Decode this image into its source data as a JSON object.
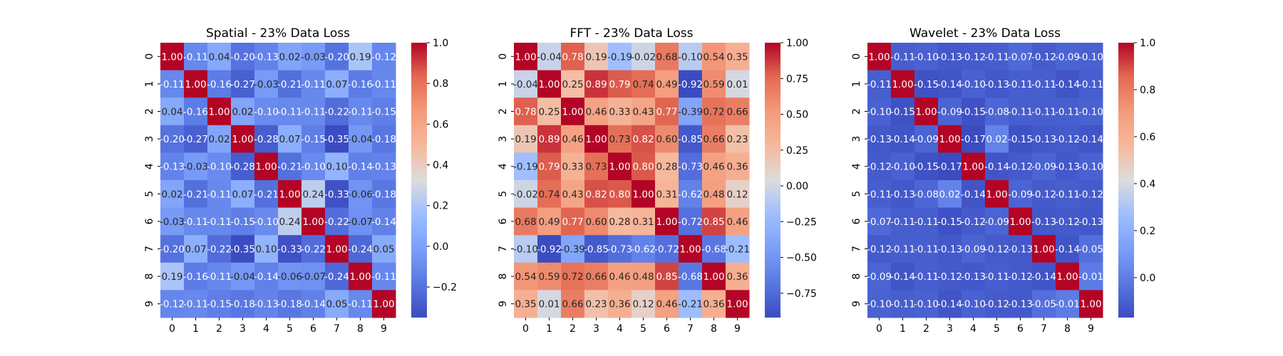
{
  "chart_data": [
    {
      "type": "heatmap",
      "title": "Spatial - 23% Data Loss",
      "x_categories": [
        "0",
        "1",
        "2",
        "3",
        "4",
        "5",
        "6",
        "7",
        "8",
        "9"
      ],
      "y_categories": [
        "0",
        "1",
        "2",
        "3",
        "4",
        "5",
        "6",
        "7",
        "8",
        "9"
      ],
      "values": [
        [
          1.0,
          -0.11,
          0.04,
          -0.2,
          -0.13,
          0.02,
          -0.03,
          -0.2,
          0.19,
          -0.12
        ],
        [
          -0.11,
          1.0,
          -0.16,
          -0.27,
          -0.03,
          -0.21,
          -0.11,
          0.07,
          -0.16,
          -0.11
        ],
        [
          0.04,
          -0.16,
          1.0,
          0.02,
          -0.1,
          -0.11,
          -0.11,
          -0.22,
          -0.11,
          -0.15
        ],
        [
          -0.2,
          -0.27,
          0.02,
          1.0,
          -0.28,
          0.07,
          -0.15,
          -0.35,
          -0.04,
          -0.18
        ],
        [
          -0.13,
          -0.03,
          -0.1,
          -0.28,
          1.0,
          -0.21,
          -0.1,
          0.1,
          -0.14,
          -0.13
        ],
        [
          0.02,
          -0.21,
          -0.11,
          0.07,
          -0.21,
          1.0,
          0.24,
          -0.33,
          -0.06,
          -0.18
        ],
        [
          -0.03,
          -0.11,
          -0.11,
          -0.15,
          -0.1,
          0.24,
          1.0,
          -0.22,
          -0.07,
          -0.14
        ],
        [
          -0.2,
          0.07,
          -0.22,
          -0.35,
          0.1,
          -0.33,
          -0.22,
          1.0,
          -0.24,
          0.05
        ],
        [
          0.19,
          -0.16,
          -0.11,
          -0.04,
          -0.14,
          -0.06,
          -0.07,
          -0.24,
          1.0,
          -0.11
        ],
        [
          -0.12,
          -0.11,
          -0.15,
          -0.18,
          -0.13,
          -0.18,
          -0.14,
          0.05,
          -0.11,
          1.0
        ]
      ],
      "colormap": "coolwarm",
      "vmin": -0.35,
      "vmax": 1.0,
      "colorbar_ticks": [
        1.0,
        0.8,
        0.6,
        0.4,
        0.2,
        0.0,
        -0.2
      ],
      "colorbar_labels": [
        "1.0",
        "0.8",
        "0.6",
        "0.4",
        "0.2",
        "0.0",
        "−0.2"
      ]
    },
    {
      "type": "heatmap",
      "title": "FFT - 23% Data Loss",
      "x_categories": [
        "0",
        "1",
        "2",
        "3",
        "4",
        "5",
        "6",
        "7",
        "8",
        "9"
      ],
      "y_categories": [
        "0",
        "1",
        "2",
        "3",
        "4",
        "5",
        "6",
        "7",
        "8",
        "9"
      ],
      "values": [
        [
          1.0,
          -0.04,
          0.78,
          0.19,
          -0.19,
          -0.02,
          0.68,
          -0.1,
          0.54,
          0.35
        ],
        [
          -0.04,
          1.0,
          0.25,
          0.89,
          0.79,
          0.74,
          0.49,
          -0.92,
          0.59,
          0.01
        ],
        [
          0.78,
          0.25,
          1.0,
          0.46,
          0.33,
          0.43,
          0.77,
          -0.39,
          0.72,
          0.66
        ],
        [
          0.19,
          0.89,
          0.46,
          1.0,
          0.73,
          0.82,
          0.6,
          -0.85,
          0.66,
          0.23
        ],
        [
          -0.19,
          0.79,
          0.33,
          0.73,
          1.0,
          0.8,
          0.28,
          -0.73,
          0.46,
          0.36
        ],
        [
          -0.02,
          0.74,
          0.43,
          0.82,
          0.8,
          1.0,
          0.31,
          -0.62,
          0.48,
          0.12
        ],
        [
          0.68,
          0.49,
          0.77,
          0.6,
          0.28,
          0.31,
          1.0,
          -0.72,
          0.85,
          0.46
        ],
        [
          -0.1,
          -0.92,
          -0.39,
          -0.85,
          -0.73,
          -0.62,
          -0.72,
          1.0,
          -0.68,
          -0.21
        ],
        [
          0.54,
          0.59,
          0.72,
          0.66,
          0.46,
          0.48,
          0.85,
          -0.68,
          1.0,
          0.36
        ],
        [
          0.35,
          0.01,
          0.66,
          0.23,
          0.36,
          0.12,
          0.46,
          -0.21,
          0.36,
          1.0
        ]
      ],
      "colormap": "coolwarm",
      "vmin": -0.92,
      "vmax": 1.0,
      "colorbar_ticks": [
        1.0,
        0.75,
        0.5,
        0.25,
        0.0,
        -0.25,
        -0.5,
        -0.75
      ],
      "colorbar_labels": [
        "1.00",
        "0.75",
        "0.50",
        "0.25",
        "0.00",
        "−0.25",
        "−0.50",
        "−0.75"
      ]
    },
    {
      "type": "heatmap",
      "title": "Wavelet - 23% Data Loss",
      "x_categories": [
        "0",
        "1",
        "2",
        "3",
        "4",
        "5",
        "6",
        "7",
        "8",
        "9"
      ],
      "y_categories": [
        "0",
        "1",
        "2",
        "3",
        "4",
        "5",
        "6",
        "7",
        "8",
        "9"
      ],
      "values": [
        [
          1.0,
          -0.11,
          -0.1,
          -0.13,
          -0.12,
          -0.11,
          -0.07,
          -0.12,
          -0.09,
          -0.1
        ],
        [
          -0.11,
          1.0,
          -0.15,
          -0.14,
          -0.1,
          -0.13,
          -0.11,
          -0.11,
          -0.14,
          -0.11
        ],
        [
          -0.1,
          -0.15,
          1.0,
          -0.09,
          -0.15,
          -0.08,
          -0.11,
          -0.11,
          -0.11,
          -0.1
        ],
        [
          -0.13,
          -0.14,
          -0.09,
          1.0,
          -0.17,
          0.02,
          -0.15,
          -0.13,
          -0.12,
          -0.14
        ],
        [
          -0.12,
          -0.1,
          -0.15,
          -0.17,
          1.0,
          -0.14,
          -0.12,
          -0.09,
          -0.13,
          -0.1
        ],
        [
          -0.11,
          -0.13,
          -0.08,
          0.02,
          -0.14,
          1.0,
          -0.09,
          -0.12,
          -0.11,
          -0.12
        ],
        [
          -0.07,
          -0.11,
          -0.11,
          -0.15,
          -0.12,
          -0.09,
          1.0,
          -0.13,
          -0.12,
          -0.13
        ],
        [
          -0.12,
          -0.11,
          -0.11,
          -0.13,
          -0.09,
          -0.12,
          -0.13,
          1.0,
          -0.14,
          -0.05
        ],
        [
          -0.09,
          -0.14,
          -0.11,
          -0.12,
          -0.13,
          -0.11,
          -0.12,
          -0.14,
          1.0,
          -0.01
        ],
        [
          -0.1,
          -0.11,
          -0.1,
          -0.14,
          -0.1,
          -0.12,
          -0.13,
          -0.05,
          -0.01,
          1.0
        ]
      ],
      "colormap": "coolwarm",
      "vmin": -0.17,
      "vmax": 1.0,
      "colorbar_ticks": [
        1.0,
        0.8,
        0.6,
        0.4,
        0.2,
        0.0
      ],
      "colorbar_labels": [
        "1.0",
        "0.8",
        "0.6",
        "0.4",
        "0.2",
        "0.0"
      ]
    }
  ]
}
